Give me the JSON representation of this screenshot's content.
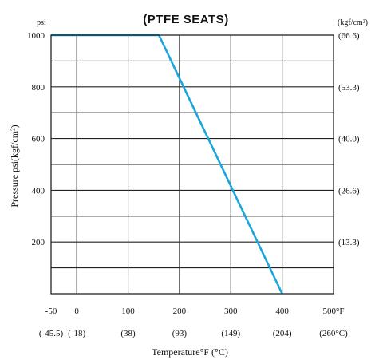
{
  "chart_data": {
    "type": "line",
    "title": "(PTFE SEATS)",
    "ylabel": "Pressure psi(kgf/cm²)",
    "xlabel": "Temperature°F (°C)",
    "y_unit_left": "psi",
    "y_unit_right": "(kgf/cm²)",
    "xlim": [
      -50,
      500
    ],
    "ylim": [
      0,
      1000
    ],
    "x_ticks": [
      {
        "value": -50,
        "label": "-50",
        "sub": "(-45.5)"
      },
      {
        "value": 0,
        "label": "0",
        "sub": "(-18)"
      },
      {
        "value": 100,
        "label": "100",
        "sub": "(38)"
      },
      {
        "value": 200,
        "label": "200",
        "sub": "(93)"
      },
      {
        "value": 300,
        "label": "300",
        "sub": "(149)"
      },
      {
        "value": 400,
        "label": "400",
        "sub": "(204)"
      },
      {
        "value": 500,
        "label": "500°F",
        "sub": "(260°C)"
      }
    ],
    "y_ticks_left": [
      {
        "value": 1000,
        "label": "1000"
      },
      {
        "value": 800,
        "label": "800"
      },
      {
        "value": 600,
        "label": "600"
      },
      {
        "value": 400,
        "label": "400"
      },
      {
        "value": 200,
        "label": "200"
      }
    ],
    "y_ticks_right": [
      {
        "value": 1000,
        "label": "(66.6)"
      },
      {
        "value": 800,
        "label": "(53.3)"
      },
      {
        "value": 600,
        "label": "(40.0)"
      },
      {
        "value": 400,
        "label": "(26.6)"
      },
      {
        "value": 200,
        "label": "(13.3)"
      }
    ],
    "x_gridlines": [
      0,
      100,
      200,
      300,
      400
    ],
    "y_gridlines": [
      100,
      200,
      300,
      400,
      500,
      600,
      700,
      800,
      900
    ],
    "grid": true,
    "series": [
      {
        "color": "#1aa6dc",
        "points": [
          {
            "x": -50,
            "y": 1000
          },
          {
            "x": 160,
            "y": 1000
          },
          {
            "x": 400,
            "y": 0
          }
        ]
      }
    ]
  }
}
